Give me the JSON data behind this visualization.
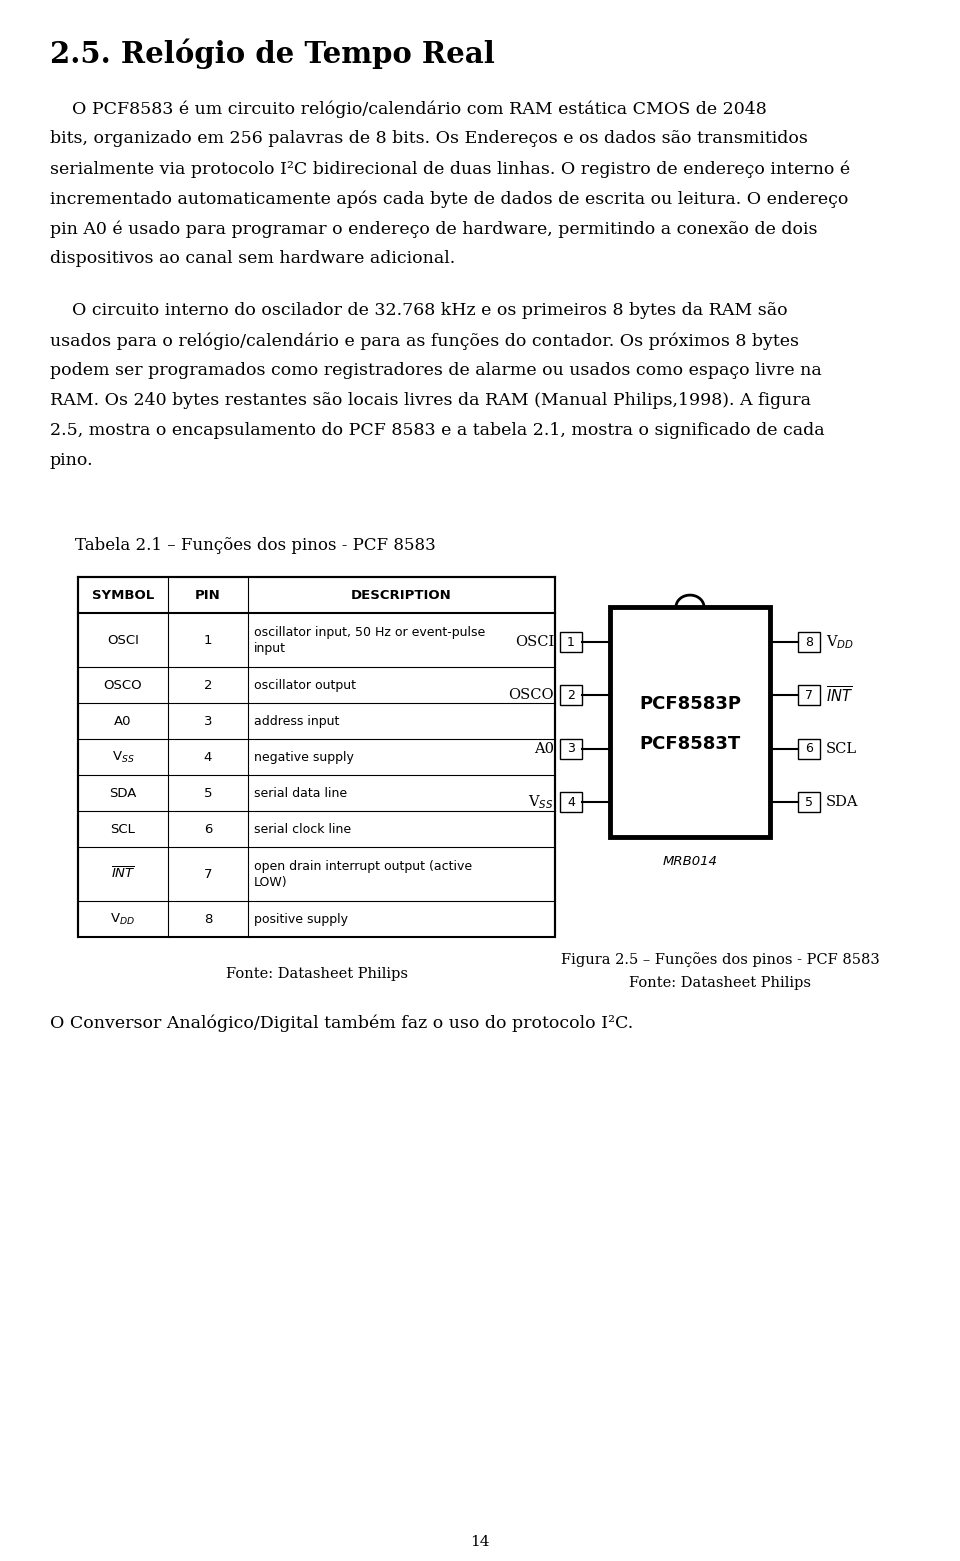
{
  "title": "2.5. Relógio de Tempo Real",
  "bg_color": "#ffffff",
  "text_color": "#000000",
  "page_number": "14",
  "para1_lines": [
    "    O PCF8583 é um circuito relógio/calendário com RAM estática CMOS de 2048",
    "bits, organizado em 256 palavras de 8 bits. Os Endereços e os dados são transmitidos",
    "serialmente via protocolo I²C bidirecional de duas linhas. O registro de endereço interno é",
    "incrementado automaticamente após cada byte de dados de escrita ou leitura. O endereço",
    "pin A0 é usado para programar o endereço de hardware, permitindo a conexão de dois",
    "dispositivos ao canal sem hardware adicional."
  ],
  "para2_lines": [
    "    O circuito interno do oscilador de 32.768 kHz e os primeiros 8 bytes da RAM são",
    "usados para o relógio/calendário e para as funções do contador. Os próximos 8 bytes",
    "podem ser programados como registradores de alarme ou usados como espaço livre na",
    "RAM. Os 240 bytes restantes são locais livres da RAM (Manual Philips,1998). A figura",
    "2.5, mostra o encapsulamento do PCF 8583 e a tabela 2.1, mostra o significado de cada",
    "pino."
  ],
  "para3": "O Conversor Analógico/Digital também faz o uso do protocolo I²C.",
  "table_caption": "Tabela 2.1 – Funções dos pinos - PCF 8583",
  "table_source": "Fonte: Datasheet Philips",
  "figure_caption": "Figura 2.5 – Funções dos pinos - PCF 8583",
  "figure_source": "Fonte: Datasheet Philips",
  "chip_label1": "PCF8583P",
  "chip_label2": "PCF8583T",
  "chip_ref": "MRB014"
}
